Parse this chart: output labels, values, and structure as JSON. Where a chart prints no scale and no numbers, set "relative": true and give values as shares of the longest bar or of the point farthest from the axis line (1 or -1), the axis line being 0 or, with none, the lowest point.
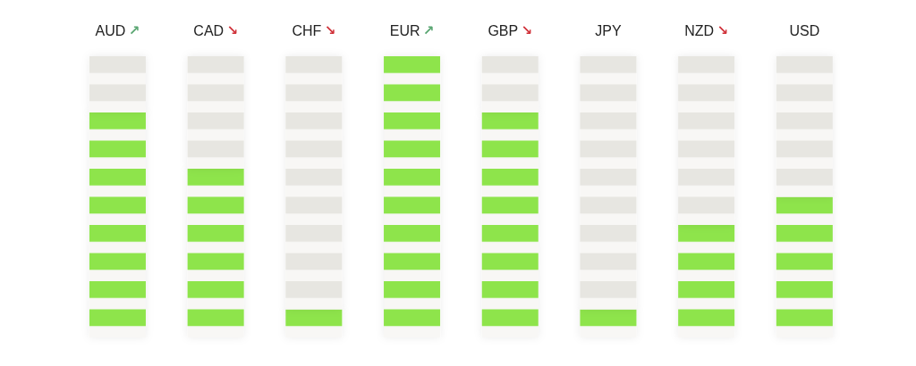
{
  "chart_data": {
    "type": "bar",
    "relative": true,
    "stacked": true,
    "categories": [
      "AUD ↗",
      "CAD ↘",
      "CHF ↘",
      "EUR ↗",
      "GBP ↘",
      "JPY",
      "NZD ↘",
      "USD"
    ],
    "series": [
      {
        "color": "#8ee44b",
        "values": [
          0.8,
          0.6,
          0.1,
          1,
          0.8,
          0.1,
          0.4,
          0.5
        ]
      },
      {
        "color": "#e7e6e1",
        "values": [
          0.2,
          0.4,
          0.9,
          0,
          0.2,
          0.9,
          0.6,
          0.5
        ]
      }
    ]
  }
}
